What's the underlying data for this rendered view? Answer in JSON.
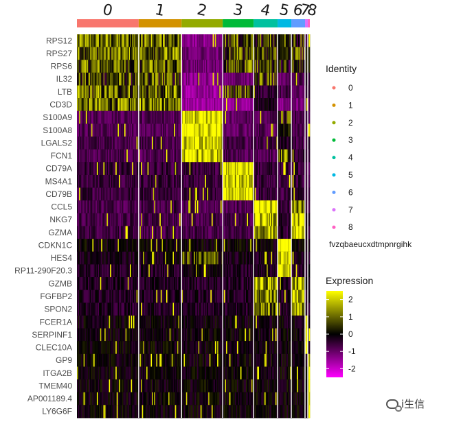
{
  "chart_data": {
    "type": "heatmap",
    "title": "",
    "xlabel": "",
    "ylabel": "",
    "clusters": [
      {
        "name": "0",
        "cells": 18.0,
        "color": "#F8766D"
      },
      {
        "name": "1",
        "cells": 12.5,
        "color": "#D39200"
      },
      {
        "name": "2",
        "cells": 12.0,
        "color": "#93AA00"
      },
      {
        "name": "3",
        "cells": 9.0,
        "color": "#00BA38"
      },
      {
        "name": "4",
        "cells": 7.0,
        "color": "#00C19F"
      },
      {
        "name": "5",
        "cells": 4.0,
        "color": "#00B9E3"
      },
      {
        "name": "6",
        "cells": 4.0,
        "color": "#619CFF"
      },
      {
        "name": "7",
        "cells": 0.8,
        "color": "#DB72FB"
      },
      {
        "name": "8",
        "cells": 0.6,
        "color": "#FF61C3"
      }
    ],
    "genes": [
      "RPS12",
      "RPS27",
      "RPS6",
      "IL32",
      "LTB",
      "CD3D",
      "S100A9",
      "S100A8",
      "LGALS2",
      "FCN1",
      "CD79A",
      "MS4A1",
      "CD79B",
      "CCL5",
      "NKG7",
      "GZMA",
      "CDKN1C",
      "HES4",
      "RP11-290F20.3",
      "GZMB",
      "FGFBP2",
      "SPON2",
      "FCER1A",
      "SERPINF1",
      "CLEC10A",
      "GP9",
      "ITGA2B",
      "TMEM40",
      "AP001189.4",
      "LY6G6F"
    ],
    "mean_expression": [
      [
        1.0,
        1.0,
        -1.2,
        0.6,
        0.5,
        0.2,
        0.4,
        0.3,
        0.2
      ],
      [
        1.0,
        1.0,
        -1.0,
        0.6,
        0.5,
        0.2,
        0.4,
        0.2,
        0.2
      ],
      [
        0.9,
        0.9,
        -1.0,
        0.6,
        0.4,
        0.3,
        0.4,
        0.2,
        0.2
      ],
      [
        0.5,
        0.6,
        -1.2,
        -1.0,
        0.6,
        -0.8,
        -0.6,
        -0.5,
        -0.5
      ],
      [
        0.8,
        0.8,
        -1.4,
        0.6,
        -0.4,
        -0.6,
        -0.8,
        -0.5,
        -0.5
      ],
      [
        1.0,
        1.1,
        -1.4,
        -1.3,
        -0.2,
        -1.2,
        -1.0,
        -0.7,
        -0.7
      ],
      [
        -0.7,
        -0.7,
        2.3,
        -0.8,
        -0.7,
        0.3,
        -0.6,
        -0.6,
        -0.6
      ],
      [
        -0.7,
        -0.7,
        2.3,
        -0.8,
        -0.7,
        0.1,
        -0.6,
        -0.6,
        -0.6
      ],
      [
        -0.6,
        -0.6,
        2.0,
        -0.6,
        -0.6,
        -0.4,
        -0.5,
        -0.5,
        -0.5
      ],
      [
        -0.7,
        -0.7,
        2.0,
        -0.7,
        -0.7,
        0.8,
        -0.5,
        -0.5,
        -0.5
      ],
      [
        -0.5,
        -0.5,
        -0.5,
        2.3,
        -0.5,
        -0.5,
        -0.5,
        -0.5,
        -0.5
      ],
      [
        -0.5,
        -0.5,
        -0.5,
        2.0,
        -0.5,
        -0.5,
        -0.5,
        -0.5,
        -0.5
      ],
      [
        -0.5,
        -0.5,
        -0.4,
        2.2,
        -0.5,
        -0.5,
        -0.5,
        -0.5,
        -0.5
      ],
      [
        -0.6,
        -0.6,
        -0.7,
        -0.7,
        2.0,
        -0.5,
        1.2,
        -0.5,
        -0.5
      ],
      [
        -0.6,
        -0.6,
        -0.6,
        -0.6,
        1.8,
        -0.4,
        2.0,
        -0.4,
        -0.4
      ],
      [
        -0.5,
        -0.6,
        -0.6,
        -0.6,
        1.6,
        -0.4,
        2.2,
        -0.5,
        -0.5
      ],
      [
        -0.05,
        -0.05,
        -0.05,
        -0.05,
        -0.05,
        2.4,
        0.0,
        -0.05,
        -0.05
      ],
      [
        -0.2,
        -0.2,
        0.5,
        -0.2,
        -0.2,
        2.2,
        -0.2,
        -0.2,
        -0.2
      ],
      [
        -0.3,
        -0.3,
        -0.1,
        -0.3,
        -0.3,
        2.2,
        -0.3,
        -0.3,
        -0.3
      ],
      [
        -0.3,
        -0.3,
        -0.3,
        -0.3,
        1.4,
        -0.3,
        1.6,
        -0.3,
        -0.3
      ],
      [
        -0.3,
        -0.3,
        -0.3,
        -0.3,
        1.2,
        -0.3,
        1.8,
        -0.3,
        -0.3
      ],
      [
        -0.3,
        -0.3,
        -0.3,
        -0.3,
        1.0,
        -0.3,
        1.4,
        -0.3,
        -0.3
      ],
      [
        -0.1,
        -0.1,
        -0.1,
        -0.1,
        -0.1,
        -0.1,
        -0.1,
        2.4,
        -0.1
      ],
      [
        -0.05,
        -0.05,
        -0.05,
        -0.05,
        -0.05,
        -0.05,
        -0.05,
        2.2,
        -0.05
      ],
      [
        -0.05,
        -0.05,
        -0.05,
        -0.05,
        -0.05,
        -0.05,
        -0.05,
        2.0,
        -0.05
      ],
      [
        -0.05,
        -0.05,
        -0.05,
        -0.05,
        -0.05,
        -0.05,
        -0.05,
        -0.1,
        2.4
      ],
      [
        -0.05,
        -0.05,
        -0.05,
        -0.05,
        -0.05,
        -0.05,
        -0.05,
        -0.1,
        2.4
      ],
      [
        -0.05,
        -0.05,
        -0.05,
        -0.05,
        -0.05,
        -0.05,
        -0.05,
        -0.1,
        2.3
      ],
      [
        -0.05,
        -0.05,
        -0.05,
        -0.05,
        -0.05,
        -0.05,
        -0.05,
        -0.1,
        2.3
      ],
      [
        -0.05,
        -0.05,
        -0.05,
        -0.05,
        -0.05,
        -0.05,
        -0.05,
        -0.1,
        2.2
      ]
    ],
    "legend": {
      "identity_title": "Identity",
      "identity_extra": "fvzqbaeucxdtmpnrgihk",
      "expression_title": "Expression",
      "expression_ticks": [
        2,
        1,
        0,
        -1,
        -2
      ],
      "expression_range": [
        -2.5,
        2.5
      ],
      "colorscale": [
        "#FF00FF",
        "#000000",
        "#FFFF00"
      ]
    }
  },
  "watermark": {
    "text": "i生信",
    "icon": "wechat-icon"
  }
}
